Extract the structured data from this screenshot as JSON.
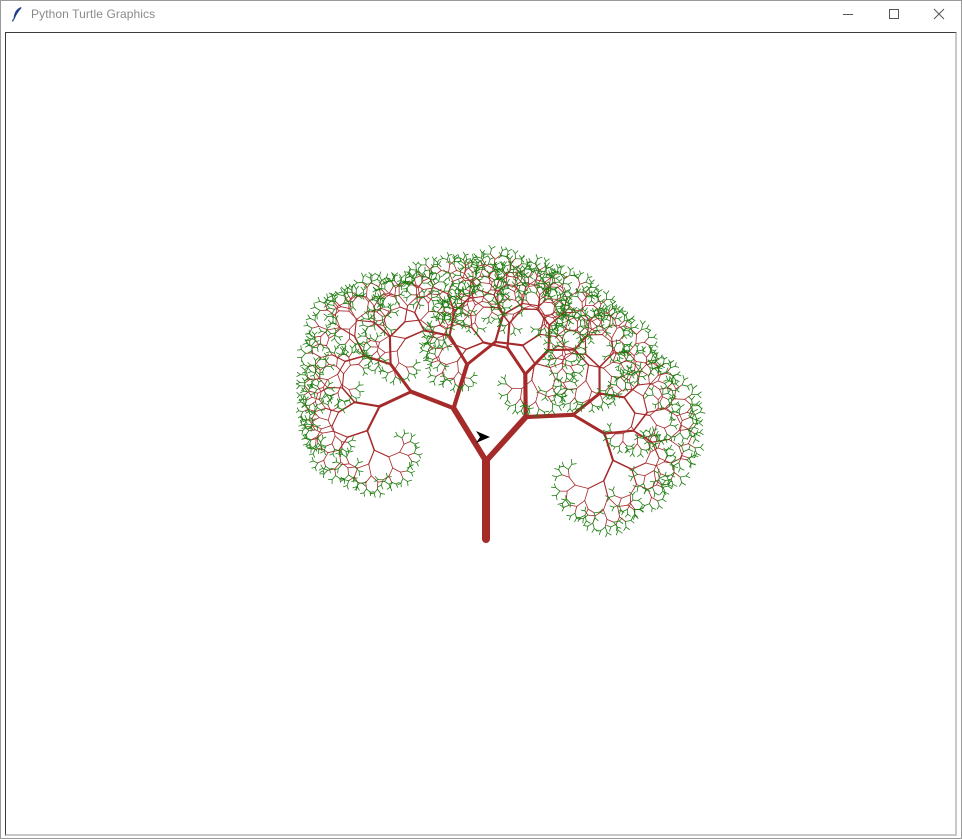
{
  "window": {
    "title": "Python Turtle Graphics",
    "app_icon": "feather-icon",
    "controls": {
      "minimize": "minimize-icon",
      "maximize": "maximize-icon",
      "close": "close-icon"
    }
  },
  "canvas": {
    "background": "#ffffff",
    "trunk_color": "#a52a2a",
    "leaf_color": "#1e7d10",
    "turtle_color": "#000000",
    "turtle_icon": "turtle-arrow-icon"
  }
}
